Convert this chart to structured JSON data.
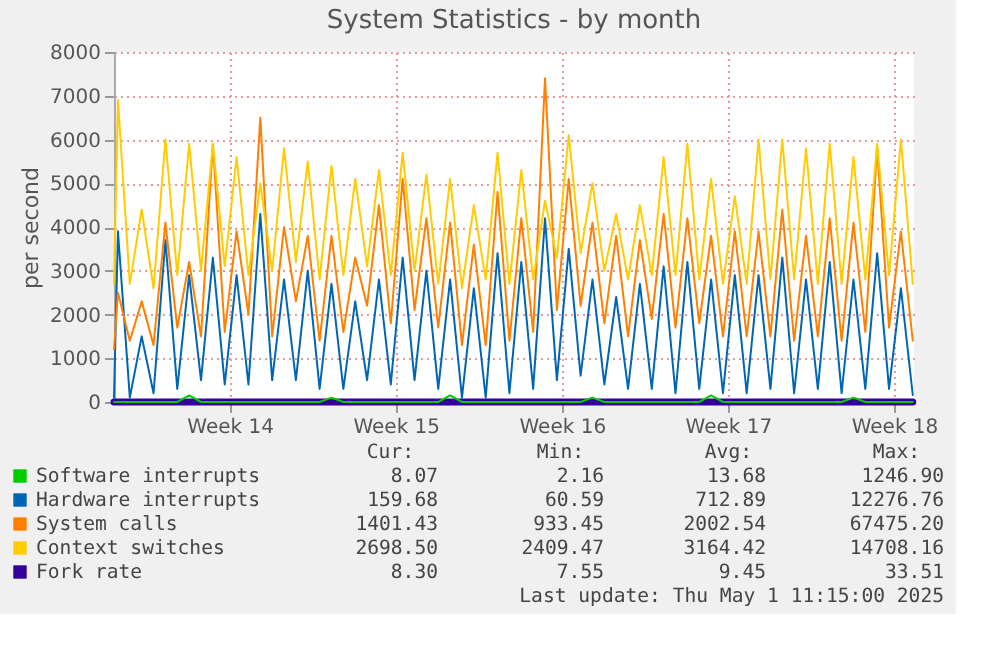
{
  "chart_data": {
    "type": "line",
    "title": "System Statistics - by month",
    "ylabel": "per second",
    "x": [
      "2025-03-28T18:00",
      "2025-03-28T22:00",
      "2025-03-29T10:00",
      "2025-03-29T22:00",
      "2025-03-30T10:00",
      "2025-03-30T22:00",
      "2025-03-31T10:00",
      "2025-03-31T22:00",
      "2025-04-01T10:00",
      "2025-04-01T22:00",
      "2025-04-02T10:00",
      "2025-04-02T22:00",
      "2025-04-03T10:00",
      "2025-04-03T22:00",
      "2025-04-04T10:00",
      "2025-04-04T22:00",
      "2025-04-05T10:00",
      "2025-04-05T22:00",
      "2025-04-06T10:00",
      "2025-04-06T22:00",
      "2025-04-07T10:00",
      "2025-04-07T22:00",
      "2025-04-08T10:00",
      "2025-04-08T22:00",
      "2025-04-09T10:00",
      "2025-04-09T22:00",
      "2025-04-10T10:00",
      "2025-04-10T22:00",
      "2025-04-11T10:00",
      "2025-04-11T22:00",
      "2025-04-12T10:00",
      "2025-04-12T22:00",
      "2025-04-13T10:00",
      "2025-04-13T22:00",
      "2025-04-14T10:00",
      "2025-04-14T22:00",
      "2025-04-15T10:00",
      "2025-04-15T22:00",
      "2025-04-16T10:00",
      "2025-04-16T22:00",
      "2025-04-17T10:00",
      "2025-04-17T22:00",
      "2025-04-18T10:00",
      "2025-04-18T22:00",
      "2025-04-19T10:00",
      "2025-04-19T22:00",
      "2025-04-20T10:00",
      "2025-04-20T22:00",
      "2025-04-21T10:00",
      "2025-04-21T22:00",
      "2025-04-22T10:00",
      "2025-04-22T22:00",
      "2025-04-23T10:00",
      "2025-04-23T22:00",
      "2025-04-24T10:00",
      "2025-04-24T22:00",
      "2025-04-25T10:00",
      "2025-04-25T22:00",
      "2025-04-26T10:00",
      "2025-04-26T22:00",
      "2025-04-27T10:00",
      "2025-04-27T22:00",
      "2025-04-28T10:00",
      "2025-04-28T22:00",
      "2025-04-29T10:00",
      "2025-04-29T22:00",
      "2025-04-30T10:00",
      "2025-04-30T22:00",
      "2025-05-01T10:00"
    ],
    "series": [
      {
        "name": "Software interrupts",
        "color": "#00cc00",
        "values": [
          0,
          0,
          0,
          0,
          0,
          0,
          0,
          150,
          0,
          0,
          0,
          0,
          0,
          0,
          0,
          0,
          0,
          0,
          0,
          100,
          0,
          0,
          0,
          0,
          0,
          0,
          0,
          0,
          0,
          150,
          0,
          0,
          0,
          0,
          0,
          0,
          0,
          0,
          0,
          0,
          0,
          100,
          0,
          0,
          0,
          0,
          0,
          0,
          0,
          0,
          0,
          150,
          0,
          0,
          0,
          0,
          0,
          0,
          0,
          0,
          0,
          0,
          0,
          100,
          0,
          0,
          0,
          0,
          0
        ]
      },
      {
        "name": "Hardware interrupts",
        "color": "#0066b3",
        "values": [
          100,
          3900,
          100,
          1500,
          200,
          3700,
          300,
          2900,
          500,
          3300,
          400,
          2900,
          400,
          4300,
          500,
          2800,
          500,
          3000,
          300,
          2700,
          300,
          2300,
          500,
          2800,
          400,
          3300,
          500,
          3000,
          300,
          2800,
          100,
          2600,
          100,
          3400,
          200,
          3200,
          300,
          4200,
          500,
          3500,
          600,
          2800,
          400,
          2400,
          300,
          2700,
          300,
          3100,
          200,
          3200,
          300,
          2800,
          200,
          2900,
          200,
          2900,
          300,
          3300,
          200,
          2800,
          300,
          3200,
          200,
          2800,
          300,
          3400,
          300,
          2600,
          160
        ]
      },
      {
        "name": "System calls",
        "color": "#ff8000",
        "values": [
          1200,
          2500,
          1400,
          2300,
          1300,
          4100,
          1700,
          3200,
          1500,
          5900,
          1600,
          3900,
          2000,
          6500,
          1500,
          4000,
          2300,
          3800,
          1400,
          3800,
          1600,
          3300,
          2200,
          4500,
          1800,
          5100,
          2100,
          4200,
          1700,
          4100,
          1300,
          3600,
          1300,
          4800,
          1400,
          4200,
          1600,
          7400,
          2100,
          5100,
          2200,
          4100,
          1800,
          3800,
          1500,
          3700,
          1900,
          4300,
          1700,
          4200,
          1800,
          3800,
          1500,
          3900,
          1500,
          3900,
          1500,
          4400,
          1400,
          3800,
          1500,
          4200,
          1400,
          4100,
          1600,
          5800,
          1700,
          3900,
          1400
        ]
      },
      {
        "name": "Context switches",
        "color": "#ffcc00",
        "values": [
          2700,
          6900,
          2700,
          4400,
          2600,
          6000,
          2900,
          5900,
          3000,
          5900,
          3100,
          5600,
          2900,
          5000,
          3000,
          5800,
          3200,
          5500,
          2800,
          5400,
          2900,
          5100,
          3100,
          5300,
          2900,
          5700,
          3000,
          5200,
          2700,
          5100,
          2600,
          4500,
          2800,
          5700,
          2700,
          5300,
          2800,
          4600,
          3300,
          6100,
          3400,
          5000,
          3000,
          4300,
          2800,
          4500,
          2900,
          5600,
          2900,
          5900,
          2800,
          5100,
          2700,
          4700,
          2700,
          6000,
          2800,
          6000,
          2800,
          5800,
          2700,
          5900,
          2700,
          5600,
          2800,
          5900,
          2900,
          6000,
          2700
        ]
      },
      {
        "name": "Fork rate",
        "color": "#330099",
        "x": [
          "2025-03-28T18:00",
          "2025-05-01T10:00"
        ],
        "values": [
          0,
          0
        ]
      }
    ],
    "xlim": [
      "2025-03-28T18:00",
      "2025-05-01T11:15"
    ],
    "xticks": [
      {
        "value": "2025-04-02T15:00",
        "label": "Week 14"
      },
      {
        "value": "2025-04-09T15:00",
        "label": "Week 15"
      },
      {
        "value": "2025-04-16T15:00",
        "label": "Week 16"
      },
      {
        "value": "2025-04-23T15:00",
        "label": "Week 17"
      },
      {
        "value": "2025-04-30T15:00",
        "label": "Week 18"
      }
    ],
    "ylim": [
      0,
      8000
    ],
    "yticks": [
      0,
      1000,
      2000,
      3000,
      4000,
      5000,
      6000,
      7000,
      8000
    ],
    "grid": true,
    "legend": "bottom",
    "annotations": [
      "Cur:",
      "Min:",
      "Avg:",
      "Max:",
      "8.07",
      "2.16",
      "13.68",
      "1246.90",
      "159.68",
      "60.59",
      "712.89",
      "12276.76",
      "1401.43",
      "933.45",
      "2002.54",
      "67475.20",
      "2698.50",
      "2409.47",
      "3164.42",
      "14708.16",
      "8.30",
      "7.55",
      "9.45",
      "33.51",
      "Last update: Thu May  1 11:15:00 2025"
    ]
  }
}
